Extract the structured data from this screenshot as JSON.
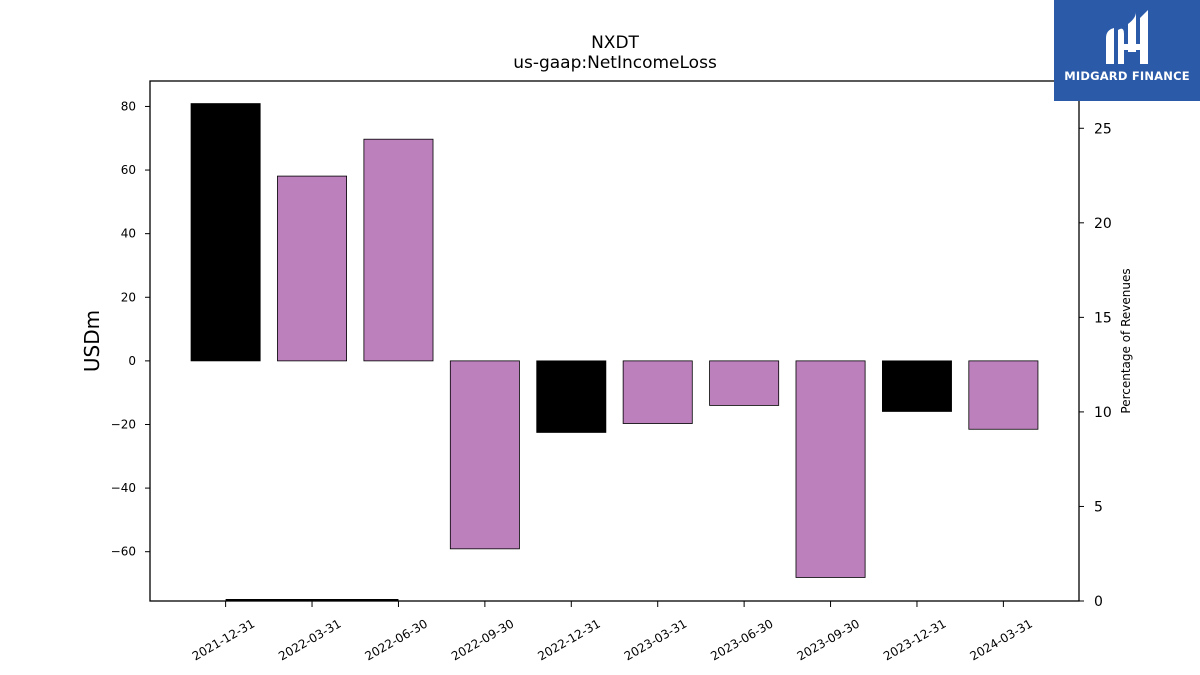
{
  "logo": {
    "text": "MIDGARD FINANCE",
    "background": "#2a5aa8"
  },
  "chart_data": {
    "type": "bar",
    "title": "NXDT",
    "subtitle": "us-gaap:NetIncomeLoss",
    "ylabel": "USDm",
    "y2label": "Percentage of Revenues",
    "categories": [
      "2021-12-31",
      "2022-03-31",
      "2022-06-30",
      "2022-09-30",
      "2022-12-31",
      "2023-03-31",
      "2023-06-30",
      "2023-09-30",
      "2023-12-31",
      "2024-03-31"
    ],
    "values": [
      80.9,
      58.1,
      69.7,
      -59.1,
      -22.5,
      -19.7,
      -14.0,
      -68.1,
      -15.9,
      -21.5
    ],
    "bar_colors": [
      "#000000",
      "#bc80bd",
      "#bc80bd",
      "#bc80bd",
      "#000000",
      "#bc80bd",
      "#bc80bd",
      "#bc80bd",
      "#000000",
      "#bc80bd"
    ],
    "ylim": [
      -75.5,
      88
    ],
    "yticks": [
      80,
      60,
      40,
      20,
      0,
      -20,
      -40,
      -60
    ],
    "y2lim": [
      0,
      27.5
    ],
    "y2ticks": [
      0,
      5,
      10,
      15,
      20,
      25
    ],
    "secondary_line": {
      "from_category": "2021-12-31",
      "to_category": "2022-06-30",
      "value_pct": 0
    },
    "grid": false,
    "legend": "none"
  }
}
